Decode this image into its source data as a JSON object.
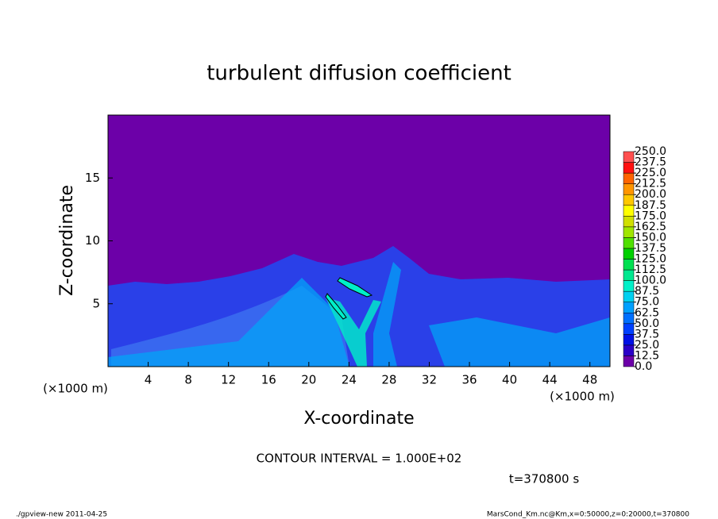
{
  "chart_data": {
    "type": "contour",
    "title": "turbulent diffusion coefficient",
    "xlabel": "X-coordinate",
    "ylabel": "Z-coordinate",
    "x_unit": "(×1000 m)",
    "xlim": [
      0,
      50
    ],
    "ylim": [
      0,
      20
    ],
    "xticks": [
      4,
      8,
      12,
      16,
      20,
      24,
      28,
      32,
      36,
      40,
      44,
      48
    ],
    "yticks": [
      5,
      10,
      15
    ],
    "contour_interval": "CONTOUR INTERVAL = 1.000E+02",
    "time": "t=370800 s",
    "footer_left": "./gpview-new   2011-04-25",
    "footer_right": "MarsCond_Km.nc@Km,x=0:50000,z=0:20000,t=370800",
    "colorbar": {
      "levels": [
        {
          "value": 0,
          "label": "0.0"
        },
        {
          "value": 12.5,
          "label": "12.5"
        },
        {
          "value": 25,
          "label": "25.0"
        },
        {
          "value": 37.5,
          "label": "37.5"
        },
        {
          "value": 50,
          "label": "50.0"
        },
        {
          "value": 62.5,
          "label": "62.5"
        },
        {
          "value": 75,
          "label": "75.0"
        },
        {
          "value": 87.5,
          "label": "87.5"
        },
        {
          "value": 100,
          "label": "100.0"
        },
        {
          "value": 112.5,
          "label": "112.5"
        },
        {
          "value": 125,
          "label": "125.0"
        },
        {
          "value": 137.5,
          "label": "137.5"
        },
        {
          "value": 150,
          "label": "150.0"
        },
        {
          "value": 162.5,
          "label": "162.5"
        },
        {
          "value": 175,
          "label": "175.0"
        },
        {
          "value": 187.5,
          "label": "187.5"
        },
        {
          "value": 200,
          "label": "200.0"
        },
        {
          "value": 212.5,
          "label": "212.5"
        },
        {
          "value": 225,
          "label": "225.0"
        },
        {
          "value": 237.5,
          "label": "237.5"
        },
        {
          "value": 250,
          "label": "250.0"
        }
      ],
      "colors": [
        "#6c00a8",
        "#2a00c8",
        "#0010e6",
        "#0040ff",
        "#0070ff",
        "#00a0ff",
        "#00d0f0",
        "#00f0c8",
        "#00e890",
        "#00e050",
        "#00d000",
        "#50e000",
        "#a0e600",
        "#d0e000",
        "#ffff00",
        "#ffc800",
        "#ff9600",
        "#ff6400",
        "#ff1010",
        "#ff5050"
      ]
    }
  }
}
